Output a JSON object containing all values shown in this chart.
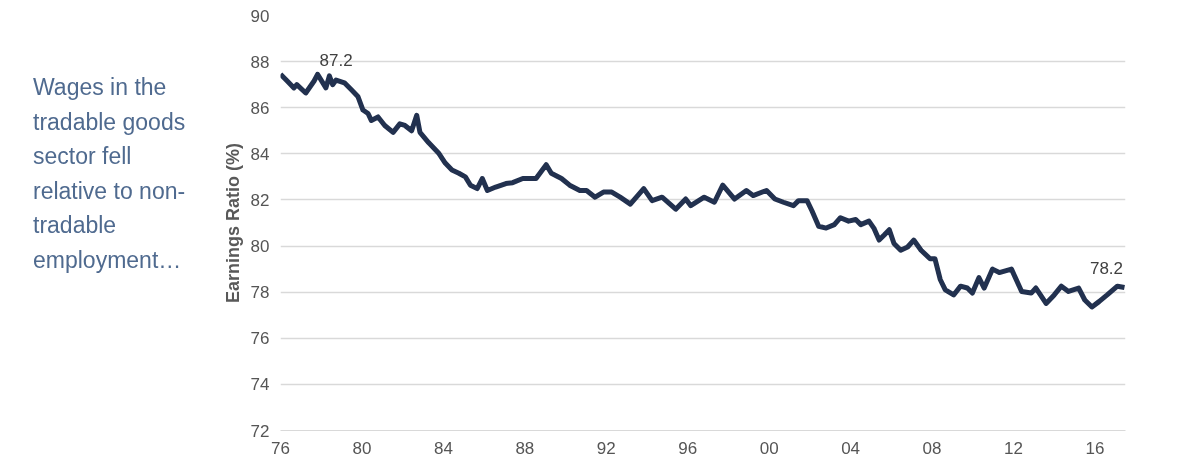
{
  "chart_data": {
    "type": "line",
    "ylabel": "Earnings Ratio (%)",
    "annotations": [
      "Wages in the tradable goods sector fell relative to non-tradable employment…",
      {
        "text": "87.2",
        "x": 1978.73,
        "y": 87.2
      },
      {
        "text": "78.2",
        "x": 2017.45,
        "y": 78.2
      }
    ],
    "xlim": [
      1976,
      2017.5
    ],
    "xticks": [
      {
        "value": 1976,
        "label": "76"
      },
      {
        "value": 1980,
        "label": "80"
      },
      {
        "value": 1984,
        "label": "84"
      },
      {
        "value": 1988,
        "label": "88"
      },
      {
        "value": 1992,
        "label": "92"
      },
      {
        "value": 1996,
        "label": "96"
      },
      {
        "value": 2000,
        "label": "00"
      },
      {
        "value": 2004,
        "label": "04"
      },
      {
        "value": 2008,
        "label": "08"
      },
      {
        "value": 2012,
        "label": "12"
      },
      {
        "value": 2016,
        "label": "16"
      }
    ],
    "ylim": [
      72,
      90
    ],
    "yticks": [
      72,
      74,
      76,
      78,
      80,
      82,
      84,
      86,
      88,
      90
    ],
    "grid": "y",
    "marker": "none",
    "line_style": "solid",
    "series": [
      {
        "color": "#22314f",
        "x": [
          1976.0,
          1976.33,
          1976.66,
          1976.8,
          1977.24,
          1977.65,
          1977.82,
          1978.23,
          1978.4,
          1978.56,
          1978.73,
          1979.14,
          1979.47,
          1979.8,
          1980.05,
          1980.3,
          1980.46,
          1980.79,
          1981.12,
          1981.53,
          1981.86,
          1982.11,
          1982.44,
          1982.69,
          1982.85,
          1983.27,
          1983.76,
          1984.09,
          1984.42,
          1984.76,
          1985.08,
          1985.33,
          1985.66,
          1985.91,
          1986.16,
          1986.57,
          1987.07,
          1987.4,
          1987.9,
          1988.55,
          1989.05,
          1989.3,
          1989.8,
          1990.2,
          1990.7,
          1991.03,
          1991.45,
          1991.86,
          1992.27,
          1992.68,
          1993.18,
          1993.84,
          1994.25,
          1994.74,
          1995.41,
          1995.9,
          1996.15,
          1996.81,
          1997.31,
          1997.72,
          1998.3,
          1998.88,
          1999.21,
          1999.87,
          2000.28,
          2000.7,
          2001.19,
          2001.44,
          2001.86,
          2002.1,
          2002.43,
          2002.8,
          2003.2,
          2003.5,
          2003.9,
          2004.25,
          2004.5,
          2004.9,
          2005.14,
          2005.4,
          2005.65,
          2005.9,
          2006.13,
          2006.46,
          2006.8,
          2007.1,
          2007.46,
          2007.9,
          2008.14,
          2008.4,
          2008.65,
          2009.06,
          2009.4,
          2009.73,
          2009.98,
          2010.3,
          2010.56,
          2010.97,
          2011.3,
          2011.9,
          2012.4,
          2012.87,
          2013.1,
          2013.6,
          2014.0,
          2014.35,
          2014.7,
          2015.2,
          2015.5,
          2015.85,
          2016.2,
          2016.6,
          2017.1,
          2017.45
        ],
        "values": [
          87.45,
          87.16,
          86.86,
          87.0,
          86.64,
          87.16,
          87.45,
          86.86,
          87.38,
          87.0,
          87.2,
          87.08,
          86.79,
          86.49,
          85.9,
          85.75,
          85.45,
          85.6,
          85.23,
          84.93,
          85.3,
          85.23,
          85.0,
          85.67,
          84.93,
          84.49,
          84.04,
          83.6,
          83.3,
          83.16,
          83.0,
          82.64,
          82.49,
          82.93,
          82.41,
          82.56,
          82.71,
          82.75,
          82.93,
          82.93,
          83.53,
          83.16,
          82.93,
          82.64,
          82.41,
          82.41,
          82.12,
          82.34,
          82.34,
          82.12,
          81.82,
          82.49,
          81.97,
          82.12,
          81.6,
          82.04,
          81.75,
          82.12,
          81.9,
          82.64,
          82.04,
          82.41,
          82.19,
          82.41,
          82.04,
          81.9,
          81.75,
          81.97,
          81.97,
          81.53,
          80.86,
          80.78,
          80.93,
          81.23,
          81.08,
          81.15,
          80.93,
          81.08,
          80.78,
          80.26,
          80.48,
          80.71,
          80.11,
          79.82,
          79.96,
          80.26,
          79.82,
          79.45,
          79.45,
          78.55,
          78.1,
          77.88,
          78.26,
          78.18,
          77.96,
          78.63,
          78.18,
          79.0,
          78.85,
          79.0,
          78.03,
          77.96,
          78.18,
          77.51,
          77.88,
          78.26,
          78.03,
          78.18,
          77.66,
          77.36,
          77.59,
          77.88,
          78.26,
          78.2
        ]
      }
    ]
  }
}
